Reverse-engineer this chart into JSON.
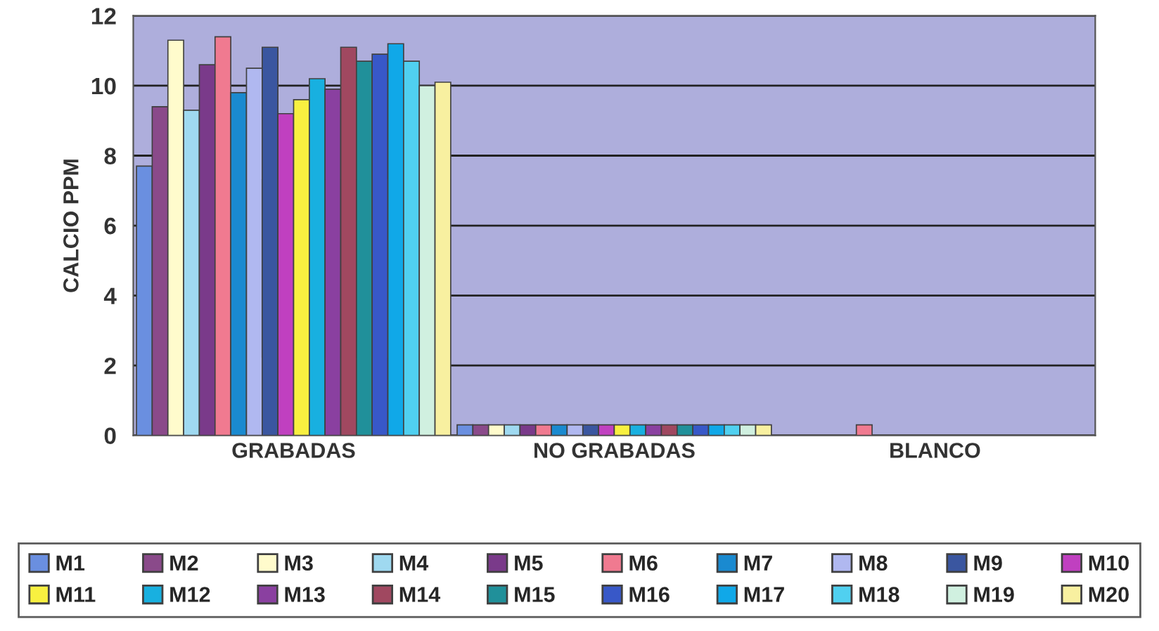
{
  "chart_data": {
    "type": "bar",
    "ylabel": "CALCIO PPM",
    "categories": [
      "GRABADAS",
      "NO GRABADAS",
      "BLANCO"
    ],
    "ylim": [
      0,
      12
    ],
    "yticks": [
      0,
      2,
      4,
      6,
      8,
      10,
      12
    ],
    "grid": "y",
    "legend": "bottom",
    "series": [
      {
        "name": "M1",
        "color": "#6a8fe0",
        "values": [
          7.7,
          0.3,
          null
        ]
      },
      {
        "name": "M2",
        "color": "#8a4a8a",
        "values": [
          9.4,
          0.3,
          null
        ]
      },
      {
        "name": "M3",
        "color": "#fffbcc",
        "values": [
          11.3,
          0.3,
          null
        ]
      },
      {
        "name": "M4",
        "color": "#9fd9f0",
        "values": [
          9.3,
          0.3,
          null
        ]
      },
      {
        "name": "M5",
        "color": "#7a3a8a",
        "values": [
          10.6,
          0.3,
          null
        ]
      },
      {
        "name": "M6",
        "color": "#f07a90",
        "values": [
          11.4,
          0.3,
          0.3
        ]
      },
      {
        "name": "M7",
        "color": "#1a8ad0",
        "values": [
          9.8,
          0.3,
          null
        ]
      },
      {
        "name": "M8",
        "color": "#b0b8f0",
        "values": [
          10.5,
          0.3,
          null
        ]
      },
      {
        "name": "M9",
        "color": "#3a56a0",
        "values": [
          11.1,
          0.3,
          null
        ]
      },
      {
        "name": "M10",
        "color": "#c040c0",
        "values": [
          9.2,
          0.3,
          null
        ]
      },
      {
        "name": "M11",
        "color": "#f8f040",
        "values": [
          9.6,
          0.3,
          null
        ]
      },
      {
        "name": "M12",
        "color": "#18b0e0",
        "values": [
          10.2,
          0.3,
          null
        ]
      },
      {
        "name": "M13",
        "color": "#8a40a0",
        "values": [
          9.9,
          0.3,
          null
        ]
      },
      {
        "name": "M14",
        "color": "#a04860",
        "values": [
          11.1,
          0.3,
          null
        ]
      },
      {
        "name": "M15",
        "color": "#20909a",
        "values": [
          10.7,
          0.3,
          null
        ]
      },
      {
        "name": "M16",
        "color": "#3858c8",
        "values": [
          10.9,
          0.3,
          null
        ]
      },
      {
        "name": "M17",
        "color": "#10a8e8",
        "values": [
          11.2,
          0.3,
          null
        ]
      },
      {
        "name": "M18",
        "color": "#50d0f0",
        "values": [
          10.7,
          0.3,
          null
        ]
      },
      {
        "name": "M19",
        "color": "#d0f0e0",
        "values": [
          10.0,
          0.3,
          null
        ]
      },
      {
        "name": "M20",
        "color": "#f8f0a0",
        "values": [
          10.1,
          0.3,
          null
        ]
      }
    ]
  }
}
